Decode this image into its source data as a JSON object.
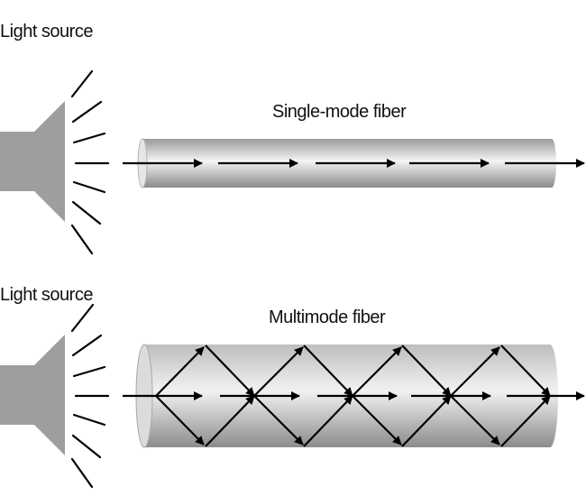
{
  "top": {
    "source_label": "Light source",
    "fiber_label": "Single-mode fiber"
  },
  "bottom": {
    "source_label": "Light source",
    "fiber_label": "Multimode fiber"
  },
  "colors": {
    "source_gray": "#9e9e9e",
    "fiber_light": "#f2f2f2",
    "fiber_dark": "#8c8c8c",
    "ray": "#000000"
  }
}
